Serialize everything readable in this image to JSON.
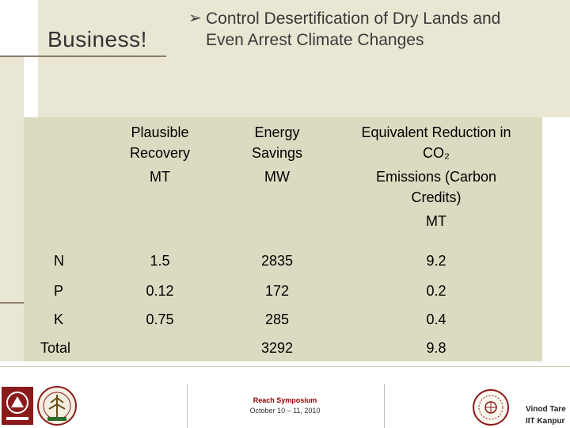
{
  "slide": {
    "brand": "Business!",
    "title_line1": "Control Desertification of Dry Lands and",
    "title_line2": "Even Arrest Climate Changes"
  },
  "table": {
    "headers": [
      {
        "key": "nutrient",
        "lines": []
      },
      {
        "key": "recovery",
        "lines": [
          "Plausible",
          "Recovery",
          "MT"
        ]
      },
      {
        "key": "energy",
        "lines": [
          "Energy",
          "Savings",
          "MW"
        ]
      },
      {
        "key": "co2",
        "lines": [
          "Equivalent Reduction in",
          "CO₂",
          "Emissions (Carbon",
          "Credits)",
          "MT"
        ]
      }
    ],
    "rows": [
      {
        "label": "N",
        "recovery": "1.5",
        "energy": "2835",
        "co2": "9.2"
      },
      {
        "label": "P",
        "recovery": "0.12",
        "energy": "172",
        "co2": "0.2"
      },
      {
        "label": "K",
        "recovery": "0.75",
        "energy": "285",
        "co2": "0.4"
      },
      {
        "label": "Total",
        "recovery": "",
        "energy": "3292",
        "co2": "9.8"
      }
    ]
  },
  "footer": {
    "event": "Reach Symposium",
    "date": "October 10 – 11, 2010",
    "author_line1": "Vinod Tare",
    "author_line2": "IIT Kanpur"
  },
  "colors": {
    "header_bg": "#e9e7d4",
    "table_bg": "#dcdac0",
    "accent_rule": "#8b7d6b",
    "event_text": "#8b0000"
  }
}
